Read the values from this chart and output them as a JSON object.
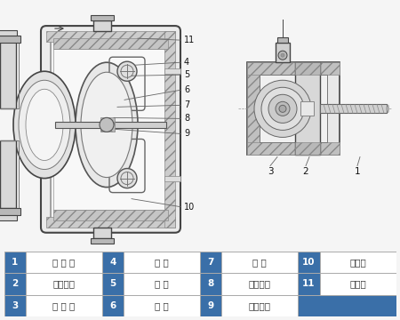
{
  "background_color": "#f5f5f5",
  "legend_items": [
    {
      "num": "1",
      "text": "进 气 口"
    },
    {
      "num": "2",
      "text": "配气阀体"
    },
    {
      "num": "3",
      "text": "配 气 阀"
    },
    {
      "num": "4",
      "text": "圆 球"
    },
    {
      "num": "5",
      "text": "球 座"
    },
    {
      "num": "6",
      "text": "隔 膜"
    },
    {
      "num": "7",
      "text": "连 杆"
    },
    {
      "num": "8",
      "text": "连杆铜套"
    },
    {
      "num": "9",
      "text": "中间支架"
    },
    {
      "num": "10",
      "text": "泵进口"
    },
    {
      "num": "11",
      "text": "排气口"
    }
  ],
  "num_bg_color": "#3a6fa8",
  "num_text_color": "#ffffff",
  "cell_bg_color": "#ffffff",
  "cell_text_color": "#333333",
  "border_color": "#aaaaaa",
  "lc": "#444444",
  "hatch_color": "#888888",
  "label_color": "#222222"
}
